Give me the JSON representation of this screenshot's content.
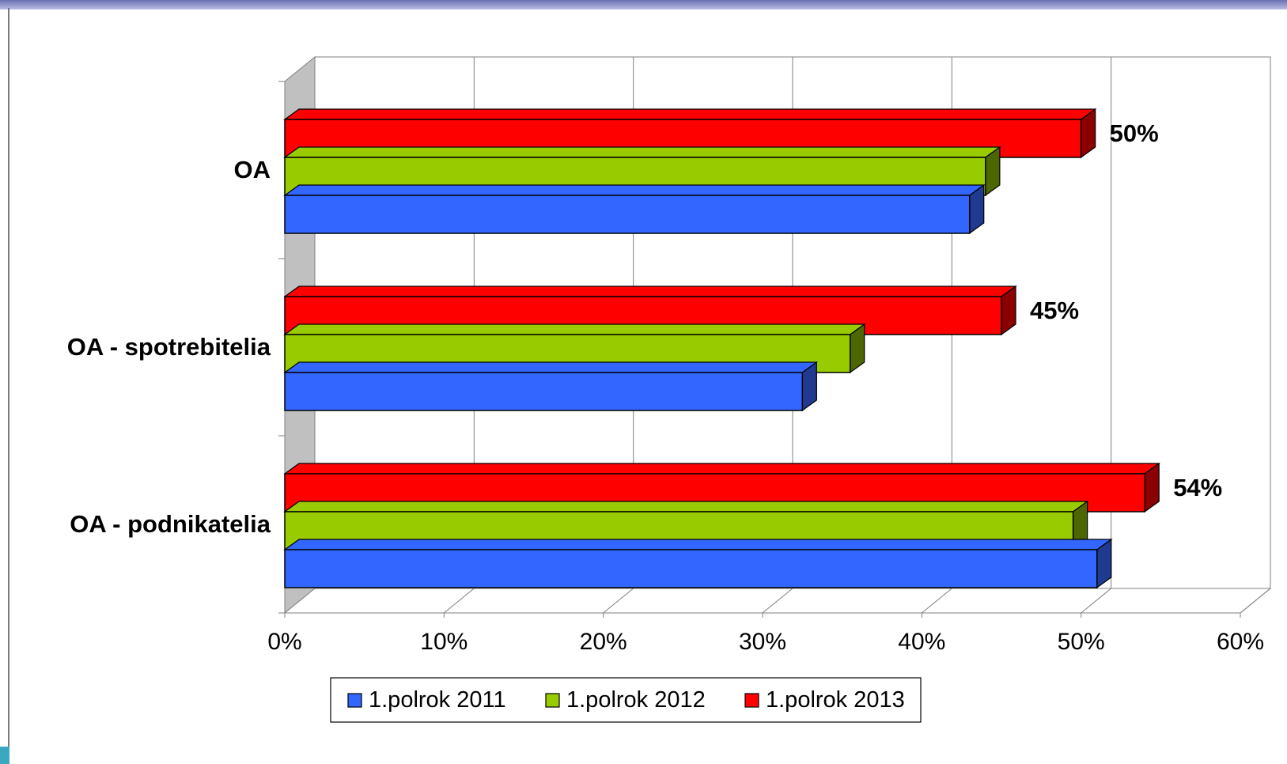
{
  "chart_data": {
    "type": "bar",
    "orientation": "horizontal",
    "style": "3d-clustered",
    "categories": [
      "OA",
      "OA - spotrebitelia",
      "OA - podnikatelia"
    ],
    "series": [
      {
        "name": "1.polrok 2011",
        "values": [
          43,
          32.5,
          51
        ],
        "color": "#3366ff",
        "side_color": "#1f3a8f"
      },
      {
        "name": "1.polrok 2012",
        "values": [
          44,
          35.5,
          49.5
        ],
        "color": "#99cc00",
        "side_color": "#4d6600"
      },
      {
        "name": "1.polrok 2013",
        "values": [
          50,
          45,
          54
        ],
        "color": "#ff0000",
        "side_color": "#8b0000"
      }
    ],
    "data_labels": {
      "1.polrok 2013": [
        "50%",
        "45%",
        "54%"
      ]
    },
    "xlim": [
      0,
      60
    ],
    "xticks": [
      "0%",
      "10%",
      "20%",
      "30%",
      "40%",
      "50%",
      "60%"
    ],
    "xtick_values": [
      0,
      10,
      20,
      30,
      40,
      50,
      60
    ],
    "grid": "vertical",
    "legend": "bottom",
    "colors": {
      "grid": "#7f7f7f",
      "back_wall": "#ffffff",
      "side_wall": "#c0c0c0",
      "frame_top": "#7a80c0"
    }
  }
}
